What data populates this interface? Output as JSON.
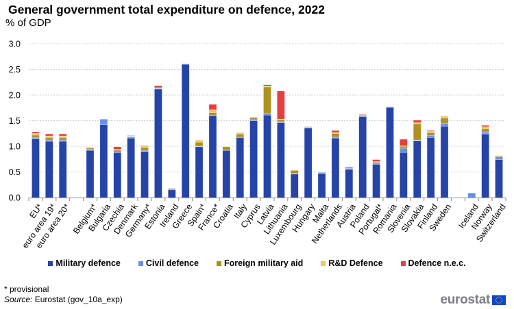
{
  "chart_data": {
    "type": "bar",
    "stacked": true,
    "title": "General government total expenditure on defence, 2022",
    "subtitle": "% of GDP",
    "xlabel": "",
    "ylabel": "% of GDP",
    "ylim": [
      0,
      3.0
    ],
    "yticks": [
      "0.0",
      "0.5",
      "1.0",
      "1.5",
      "2.0",
      "2.5",
      "3.0"
    ],
    "grid": true,
    "legend_position": "bottom",
    "categories": [
      "EU*",
      "euro area 19*",
      "euro area 20*",
      "",
      "Belgium*",
      "Bulgaria",
      "Czechia",
      "Denmark",
      "Germany*",
      "Estonia",
      "Ireland",
      "Greece",
      "Spain*",
      "France*",
      "Croatia",
      "Italy",
      "Cyprus",
      "Latvia",
      "Lithuania",
      "Luxembourg",
      "Hungary",
      "Malta",
      "Netherlands",
      "Austria",
      "Poland",
      "Portugal*",
      "Romania",
      "Slovenia",
      "Slovakia",
      "Finland",
      "Sweden",
      "",
      "Iceland",
      "Norway",
      "Switzerland"
    ],
    "series": [
      {
        "name": "Military defence",
        "color": "#2644a8",
        "values": [
          1.15,
          1.1,
          1.1,
          null,
          0.92,
          1.42,
          0.88,
          1.16,
          0.9,
          2.12,
          0.15,
          2.6,
          0.99,
          1.6,
          0.92,
          1.17,
          1.5,
          1.61,
          1.46,
          0.46,
          1.36,
          0.47,
          1.16,
          0.55,
          1.58,
          0.65,
          1.76,
          0.88,
          1.11,
          1.17,
          1.39,
          null,
          0.0,
          1.24,
          0.74
        ]
      },
      {
        "name": "Civil defence",
        "color": "#6b8ee6",
        "values": [
          0.02,
          0.02,
          0.02,
          null,
          0.02,
          0.11,
          0.01,
          0.03,
          0.02,
          0.01,
          0.02,
          0.01,
          0.01,
          0.01,
          0.01,
          0.01,
          0.02,
          0.03,
          0.02,
          0.01,
          0.01,
          0.02,
          0.02,
          0.02,
          0.02,
          0.02,
          0.01,
          0.08,
          0.01,
          0.04,
          0.06,
          null,
          0.09,
          0.04,
          0.05
        ]
      },
      {
        "name": "Foreign military aid",
        "color": "#b09020",
        "values": [
          0.05,
          0.05,
          0.05,
          null,
          0.03,
          0.0,
          0.04,
          0.0,
          0.06,
          0.0,
          0.01,
          0.0,
          0.08,
          0.05,
          0.06,
          0.06,
          0.04,
          0.52,
          0.04,
          0.06,
          0.01,
          0.0,
          0.07,
          0.0,
          0.0,
          0.02,
          0.0,
          0.04,
          0.32,
          0.06,
          0.1,
          null,
          0.0,
          0.06,
          0.02
        ]
      },
      {
        "name": "R&D Defence",
        "color": "#ecc864",
        "values": [
          0.03,
          0.03,
          0.03,
          null,
          0.01,
          0.0,
          0.01,
          0.01,
          0.04,
          0.01,
          0.0,
          0.0,
          0.04,
          0.05,
          0.0,
          0.02,
          0.01,
          0.01,
          0.01,
          0.0,
          0.01,
          0.0,
          0.02,
          0.01,
          0.02,
          0.01,
          0.0,
          0.01,
          0.02,
          0.02,
          0.04,
          null,
          0.0,
          0.04,
          0.01
        ]
      },
      {
        "name": "Defence n.e.c.",
        "color": "#e34040",
        "values": [
          0.03,
          0.04,
          0.04,
          null,
          0.0,
          0.0,
          0.05,
          0.01,
          0.0,
          0.04,
          0.0,
          0.0,
          0.0,
          0.11,
          0.0,
          0.01,
          0.0,
          0.03,
          0.55,
          0.0,
          0.0,
          0.0,
          0.04,
          0.02,
          0.01,
          0.04,
          0.0,
          0.13,
          0.05,
          0.02,
          0.0,
          null,
          0.0,
          0.03,
          0.0
        ]
      }
    ]
  },
  "footnote": "* provisional",
  "source_label": "Source:",
  "source_text": " Eurostat (gov_10a_exp)",
  "logo_text": "eurostat"
}
